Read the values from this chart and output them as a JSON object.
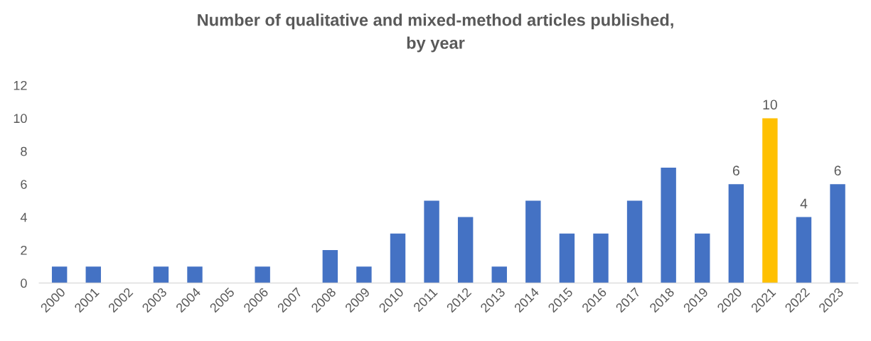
{
  "chart_data": {
    "type": "bar",
    "title": "Number of qualitative and mixed-method articles published,\nby year",
    "categories": [
      "2000",
      "2001",
      "2002",
      "2003",
      "2004",
      "2005",
      "2006",
      "2007",
      "2008",
      "2009",
      "2010",
      "2011",
      "2012",
      "2013",
      "2014",
      "2015",
      "2016",
      "2017",
      "2018",
      "2019",
      "2020",
      "2021",
      "2022",
      "2023"
    ],
    "values": [
      1,
      1,
      0,
      1,
      1,
      0,
      1,
      0,
      2,
      1,
      3,
      5,
      4,
      1,
      5,
      3,
      3,
      5,
      7,
      3,
      6,
      10,
      4,
      6
    ],
    "colors": [
      "#4472c4",
      "#4472c4",
      "#4472c4",
      "#4472c4",
      "#4472c4",
      "#4472c4",
      "#4472c4",
      "#4472c4",
      "#4472c4",
      "#4472c4",
      "#4472c4",
      "#4472c4",
      "#4472c4",
      "#4472c4",
      "#4472c4",
      "#4472c4",
      "#4472c4",
      "#4472c4",
      "#4472c4",
      "#4472c4",
      "#4472c4",
      "#ffc000",
      "#4472c4",
      "#4472c4"
    ],
    "value_labels": [
      null,
      null,
      null,
      null,
      null,
      null,
      null,
      null,
      null,
      null,
      null,
      null,
      null,
      null,
      null,
      null,
      null,
      null,
      null,
      null,
      "6",
      "10",
      "4",
      "6"
    ],
    "ylim": [
      0,
      12
    ],
    "yticks": [
      0,
      2,
      4,
      6,
      8,
      10,
      12
    ],
    "grid": false,
    "legend": false
  }
}
